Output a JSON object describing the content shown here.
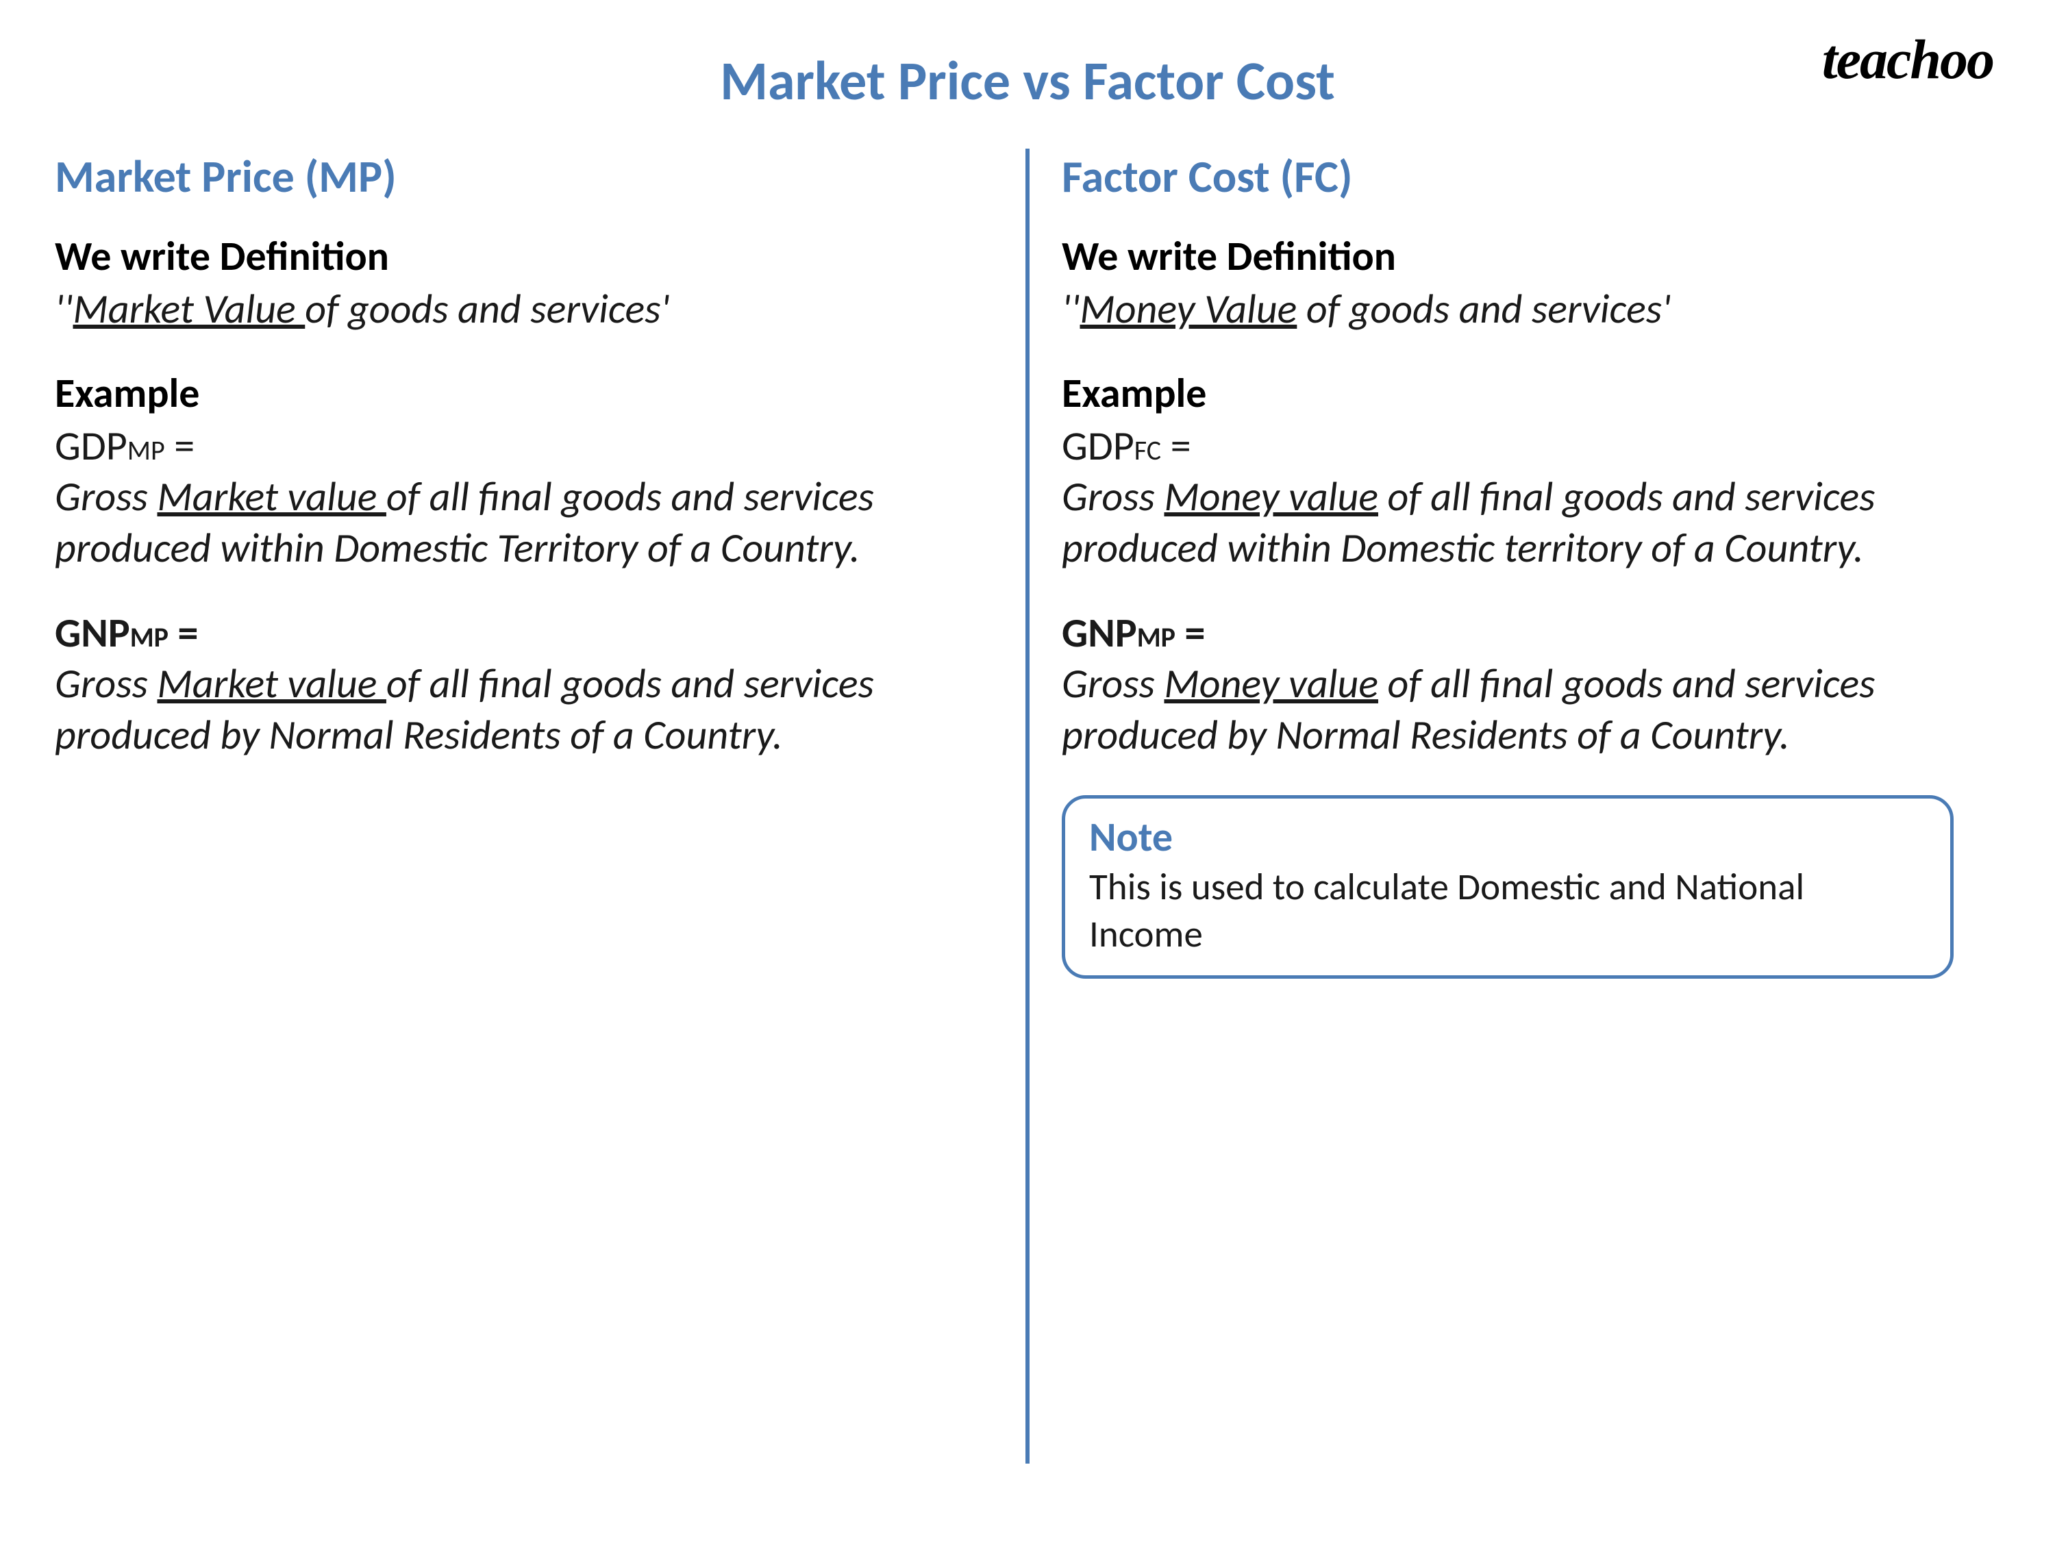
{
  "logo": "teachoo",
  "main_title": "Market Price vs Factor Cost",
  "colors": {
    "accent": "#4a7bb5",
    "text": "#1a1a1a",
    "background": "#ffffff"
  },
  "left": {
    "heading": "Market Price (MP)",
    "def_label": "We write Definition",
    "def_prefix": "''",
    "def_underlined": "Market Value ",
    "def_rest": "of goods and services'",
    "example_label": "Example",
    "gdp_prefix": "GDP",
    "gdp_sub": "MP",
    "gdp_equals": " =",
    "gdp_body_pre": "Gross ",
    "gdp_body_underlined": "Market value ",
    "gdp_body_post": "of all final goods and services produced within Domestic Territory of a Country.",
    "gnp_prefix": "GNP",
    "gnp_sub": "MP",
    "gnp_equals": " =",
    "gnp_body_pre": "Gross ",
    "gnp_body_underlined": "Market value ",
    "gnp_body_post": "of all final goods and services produced by Normal Residents of a Country."
  },
  "right": {
    "heading": "Factor Cost (FC)",
    "def_label": "We write Definition",
    "def_prefix": "''",
    "def_underlined": "Money Value",
    "def_rest": " of goods and services'",
    "example_label": "Example",
    "gdp_prefix": "GDP",
    "gdp_sub": "FC",
    "gdp_equals": " =",
    "gdp_body_pre": "Gross ",
    "gdp_body_underlined": "Money value",
    "gdp_body_post": " of all final goods and services produced within Domestic territory of a Country.",
    "gnp_prefix": "GNP",
    "gnp_sub": "MP",
    "gnp_equals": " =",
    "gnp_body_pre": "Gross ",
    "gnp_body_underlined": "Money value",
    "gnp_body_post": " of all final goods and services produced by Normal Residents of a Country.",
    "note_title": "Note",
    "note_body": "This is used to calculate Domestic and National Income"
  }
}
